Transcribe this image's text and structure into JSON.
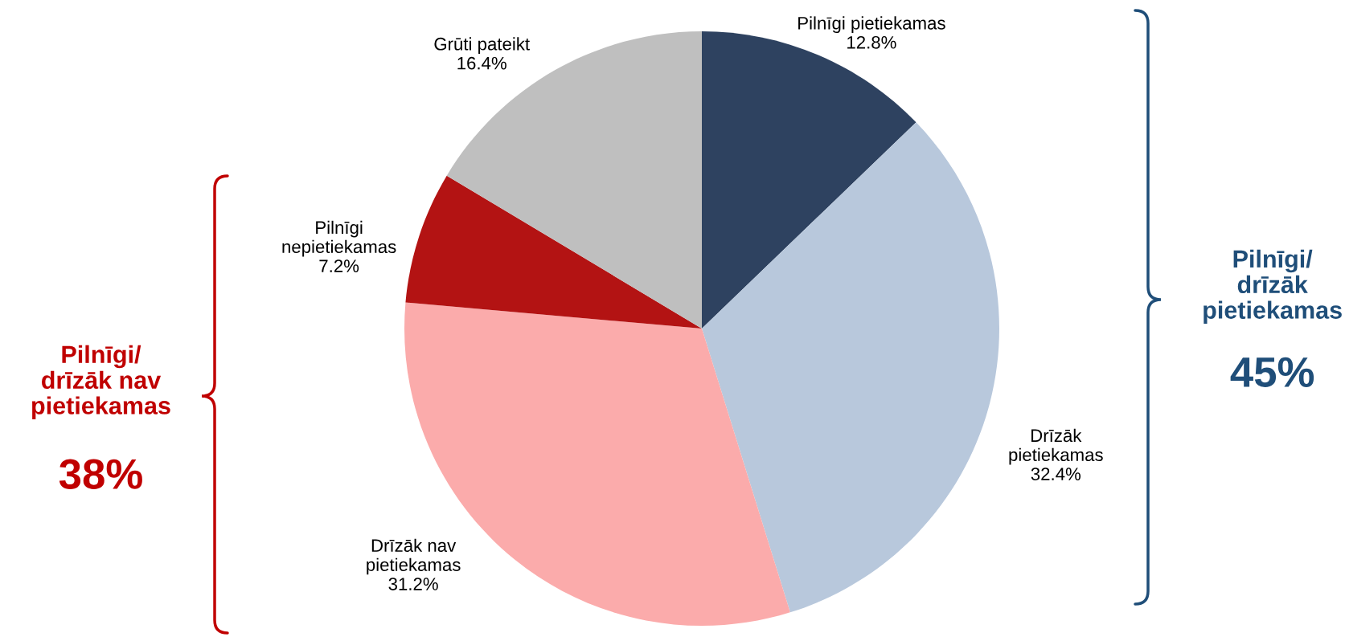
{
  "chart_data": {
    "type": "pie",
    "categories": [
      "Pilnīgi pietiekamas",
      "Drīzāk\npietiekamas",
      "Drīzāk nav\npietiekamas",
      "Pilnīgi\nnepietiekamas",
      "Grūti pateikt"
    ],
    "values": [
      12.8,
      32.4,
      31.2,
      7.2,
      16.4
    ],
    "colors": [
      "#2e4260",
      "#b8c8dc",
      "#fbabab",
      "#b31313",
      "#bfbfbf"
    ],
    "value_labels": [
      "12.8%",
      "32.4%",
      "31.2%",
      "7.2%",
      "16.4%"
    ],
    "annotations": [
      "Pilnīgi/\ndrīzāk nav\npietiekamas",
      "38%",
      "Pilnīgi/\ndrīzāk\npietiekamas",
      "45%"
    ]
  }
}
